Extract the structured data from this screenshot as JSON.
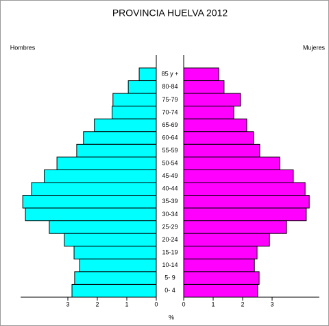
{
  "chart_data": {
    "type": "pyramid",
    "title": "PROVINCIA HUELVA 2012",
    "categories": [
      "85 y +",
      "80-84",
      "75-79",
      "70-74",
      "65-69",
      "60-64",
      "55-59",
      "50-54",
      "45-49",
      "40-44",
      "35-39",
      "30-34",
      "25-29",
      "20-24",
      "15-19",
      "10-14",
      "5- 9",
      "0- 4"
    ],
    "series": [
      {
        "name": "Hombres",
        "color": "#00ffff",
        "values": [
          0.58,
          0.95,
          1.47,
          1.5,
          2.1,
          2.47,
          2.7,
          3.37,
          3.8,
          4.23,
          4.53,
          4.44,
          3.63,
          3.12,
          2.79,
          2.6,
          2.77,
          2.86
        ]
      },
      {
        "name": "Mujeres",
        "color": "#ff00ff",
        "values": [
          1.19,
          1.37,
          1.93,
          1.7,
          2.14,
          2.37,
          2.58,
          3.26,
          3.72,
          4.12,
          4.26,
          4.16,
          3.49,
          2.91,
          2.49,
          2.4,
          2.56,
          2.51
        ]
      }
    ],
    "x_label": "%",
    "xlim": [
      0,
      4.6
    ],
    "xticks": [
      0,
      1,
      2,
      3
    ]
  }
}
